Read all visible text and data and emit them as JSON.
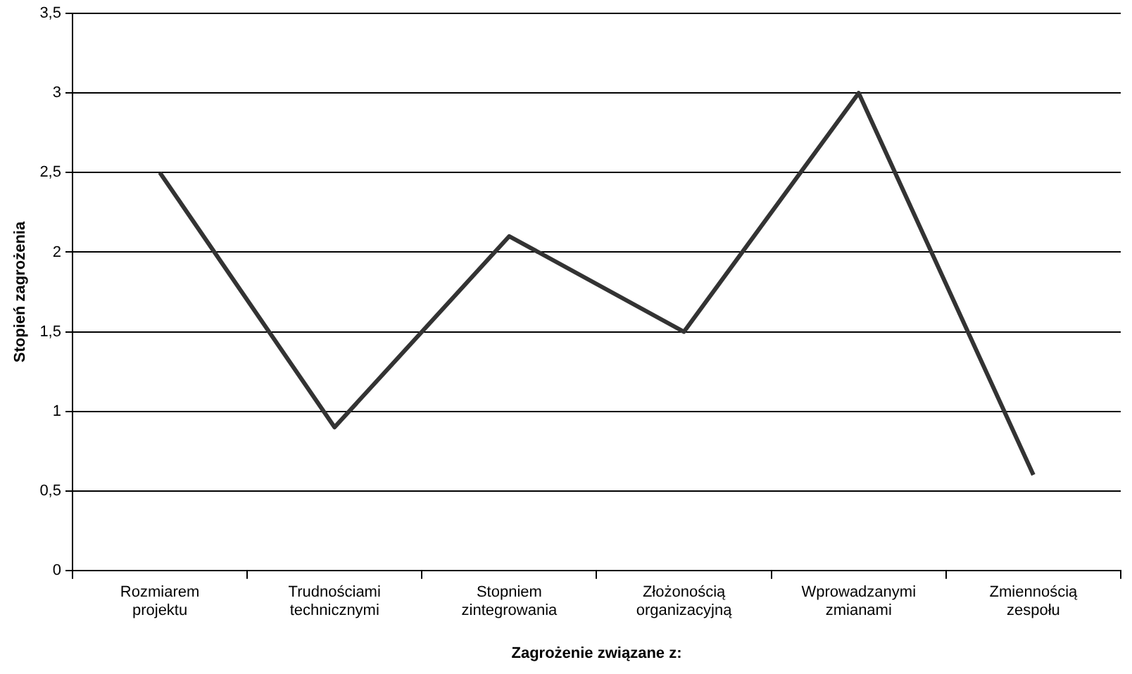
{
  "chart_data": {
    "type": "line",
    "xlabel": "Zagrożenie związane z:",
    "ylabel": "Stopień zagrożenia",
    "categories": [
      "Rozmiarem projektu",
      "Trudnościami technicznymi",
      "Stopniem zintegrowania",
      "Złożonością organizacyjną",
      "Wprowadzanymi zmianami",
      "Zmiennością zespołu"
    ],
    "series": [
      {
        "color": "#333333",
        "values": [
          2.5,
          0.9,
          2.1,
          1.5,
          3.0,
          0.6
        ]
      }
    ],
    "ylim": [
      0,
      3.5
    ],
    "yticks": [
      0,
      {
        "value": 0.5,
        "label": "0,5"
      },
      1,
      {
        "value": 1.5,
        "label": "1,5"
      },
      2,
      {
        "value": 2.5,
        "label": "2,5"
      },
      3,
      {
        "value": 3.5,
        "label": "3,5"
      }
    ],
    "grid": "y",
    "legend": false,
    "marker": "none",
    "line_style": "solid"
  }
}
